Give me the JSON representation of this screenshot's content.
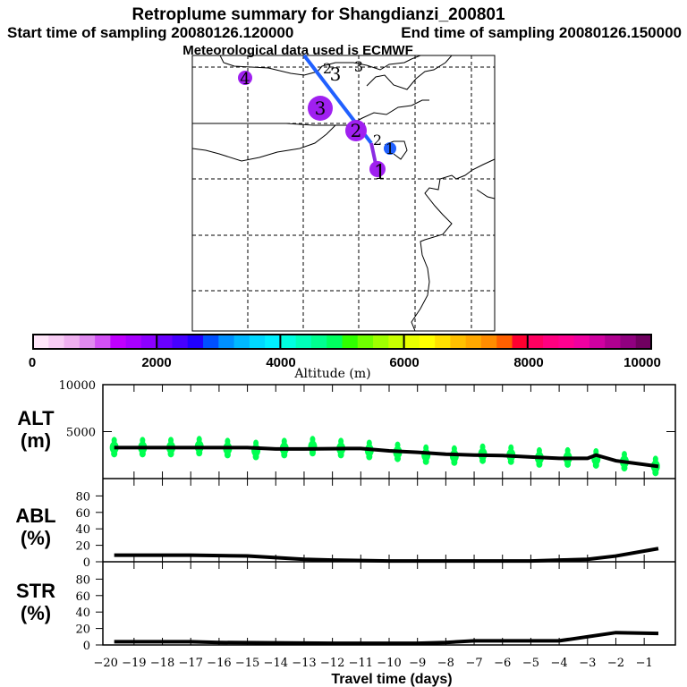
{
  "header": {
    "title": "Retroplume summary for Shangdianzi_200801",
    "start": "Start time of sampling 20080126.120000",
    "end": "End time of sampling 20080126.150000",
    "met": "Meteorological data used is ECMWF"
  },
  "map": {
    "cluster_labels": [
      "1",
      "2",
      "3",
      "4",
      "1",
      "2",
      "3",
      "2",
      "3"
    ],
    "track_color": "#1e6ef0"
  },
  "colorbar": {
    "ticks": [
      "0",
      "2000",
      "4000",
      "6000",
      "8000",
      "10000"
    ],
    "label": "Altitude (m)",
    "colors": [
      "#ffe6fa",
      "#f8cdf5",
      "#efb0f0",
      "#e08af0",
      "#d250f5",
      "#c000ff",
      "#a800ff",
      "#8c00ff",
      "#6a00ff",
      "#4600ff",
      "#2000ff",
      "#0050ff",
      "#0090ff",
      "#00b8ff",
      "#00d8ff",
      "#00f0ff",
      "#00ffe0",
      "#00ffb8",
      "#00ff90",
      "#00ff60",
      "#30ff00",
      "#70ff00",
      "#a0ff00",
      "#c8ff00",
      "#e8ff00",
      "#ffff00",
      "#ffe000",
      "#ffc000",
      "#ffa800",
      "#ff8c00",
      "#ff6000",
      "#ff0030",
      "#ff0060",
      "#ff0080",
      "#ff0090",
      "#f000a0",
      "#d000a0",
      "#b00090",
      "#900080",
      "#700060"
    ]
  },
  "chart_data": [
    {
      "type": "line",
      "panel": "ALT",
      "ylabel": [
        "ALT",
        "(m)"
      ],
      "yticks": [
        "10000",
        "5000"
      ],
      "ylim": [
        0,
        10000
      ],
      "x": [
        -19.7,
        -17,
        -15,
        -14,
        -13,
        -11.5,
        -11,
        -10,
        -9,
        -8,
        -7,
        -6,
        -5,
        -4,
        -3,
        -2.7,
        -2,
        -0.5
      ],
      "y": [
        3300,
        3300,
        3300,
        3150,
        3150,
        3200,
        3200,
        2950,
        2800,
        2600,
        2500,
        2450,
        2300,
        2150,
        2150,
        2500,
        1900,
        1300
      ],
      "scatter_color": "#00ff50",
      "scatter_x": [
        -19.7,
        -18.7,
        -17.7,
        -16.7,
        -15.7,
        -14.7,
        -13.7,
        -12.7,
        -11.7,
        -10.7,
        -9.7,
        -8.7,
        -7.7,
        -6.7,
        -5.7,
        -4.7,
        -3.7,
        -2.7,
        -1.7,
        -0.6
      ],
      "scatter_y": [
        3300,
        3300,
        3300,
        3400,
        3200,
        3000,
        3200,
        3400,
        3200,
        3000,
        2800,
        2500,
        2400,
        2600,
        2500,
        2200,
        2200,
        2100,
        1800,
        1300
      ]
    },
    {
      "type": "line",
      "panel": "ABL",
      "ylabel": [
        "ABL",
        "(%)"
      ],
      "yticks": [
        "80",
        "60",
        "40",
        "20",
        "0"
      ],
      "ylim": [
        0,
        100
      ],
      "x": [
        -19.7,
        -17,
        -15,
        -14,
        -13,
        -12,
        -10,
        -7,
        -5,
        -4,
        -3,
        -2,
        -0.5
      ],
      "y": [
        8,
        8,
        7,
        5,
        3,
        2,
        1,
        1,
        1,
        2,
        3,
        7,
        16
      ]
    },
    {
      "type": "line",
      "panel": "STR",
      "ylabel": [
        "STR",
        "(%)"
      ],
      "yticks": [
        "80",
        "60",
        "40",
        "20",
        "0"
      ],
      "ylim": [
        0,
        100
      ],
      "x": [
        -19.7,
        -17,
        -16,
        -12,
        -9,
        -8,
        -7,
        -4,
        -3,
        -2,
        -0.5
      ],
      "y": [
        4,
        4,
        3,
        2,
        2,
        3,
        5,
        5,
        10,
        15,
        14
      ],
      "xlabel": "Travel time (days)",
      "xticks": [
        "-20",
        "-19",
        "-18",
        "-17",
        "-16",
        "-15",
        "-14",
        "-13",
        "-12",
        "-11",
        "-10",
        "-9",
        "-8",
        "-7",
        "-6",
        "-5",
        "-4",
        "-3",
        "-2",
        "-1"
      ],
      "xlim": [
        -20.1,
        0.1
      ]
    }
  ]
}
